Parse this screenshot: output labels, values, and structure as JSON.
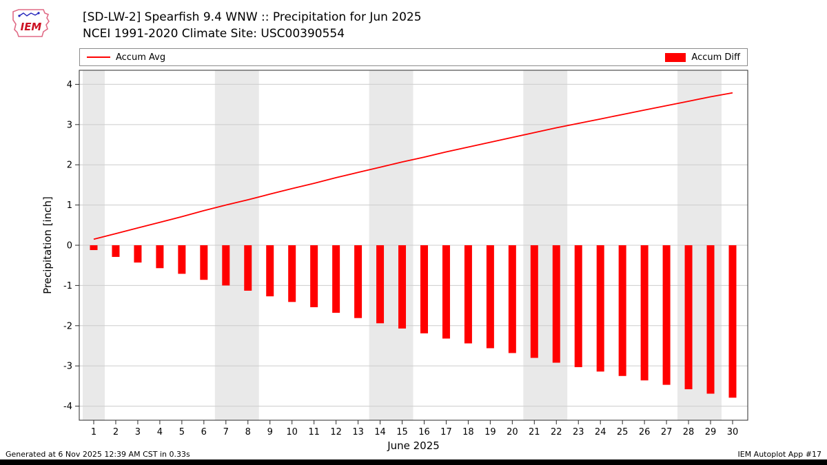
{
  "header": {
    "title_line1": "[SD-LW-2] Spearfish 9.4 WNW :: Precipitation for Jun 2025",
    "title_line2": "NCEI 1991-2020 Climate Site: USC00390554",
    "logo_text": "IEM"
  },
  "legend": {
    "line_label": "Accum Avg",
    "bar_label": "Accum Diff"
  },
  "footer": {
    "left": "Generated at 6 Nov 2025 12:39 AM CST in 0.33s",
    "right": "IEM Autoplot App #17"
  },
  "chart_data": {
    "type": "bar",
    "title": "[SD-LW-2] Spearfish 9.4 WNW :: Precipitation for Jun 2025",
    "subtitle": "NCEI 1991-2020 Climate Site: USC00390554",
    "xlabel": "June 2025",
    "ylabel": "Precipitation [inch]",
    "ylim": [
      -4.35,
      4.35
    ],
    "yticks": [
      -4,
      -3,
      -2,
      -1,
      0,
      1,
      2,
      3,
      4
    ],
    "grid": true,
    "grid_color": "#cccccc",
    "band_color": "#e9e9e9",
    "legend_position": "top",
    "x": [
      1,
      2,
      3,
      4,
      5,
      6,
      7,
      8,
      9,
      10,
      11,
      12,
      13,
      14,
      15,
      16,
      17,
      18,
      19,
      20,
      21,
      22,
      23,
      24,
      25,
      26,
      27,
      28,
      29,
      30
    ],
    "weekend_bands": [
      [
        0.5,
        1.5
      ],
      [
        6.5,
        8.5
      ],
      [
        13.5,
        15.5
      ],
      [
        20.5,
        22.5
      ],
      [
        27.5,
        29.5
      ]
    ],
    "series": [
      {
        "name": "Accum Avg",
        "type": "line",
        "color": "#ff0000",
        "values": [
          0.15,
          0.29,
          0.43,
          0.57,
          0.71,
          0.86,
          1.0,
          1.13,
          1.27,
          1.41,
          1.54,
          1.68,
          1.81,
          1.94,
          2.07,
          2.19,
          2.32,
          2.44,
          2.56,
          2.68,
          2.8,
          2.92,
          3.03,
          3.14,
          3.25,
          3.36,
          3.47,
          3.58,
          3.69,
          3.79
        ]
      },
      {
        "name": "Accum Diff",
        "type": "bar",
        "color": "#ff0000",
        "values": [
          -0.12,
          -0.29,
          -0.43,
          -0.57,
          -0.71,
          -0.86,
          -1.0,
          -1.13,
          -1.27,
          -1.41,
          -1.54,
          -1.68,
          -1.81,
          -1.94,
          -2.07,
          -2.19,
          -2.32,
          -2.44,
          -2.56,
          -2.68,
          -2.8,
          -2.92,
          -3.03,
          -3.14,
          -3.25,
          -3.36,
          -3.47,
          -3.58,
          -3.69,
          -3.79
        ]
      }
    ]
  }
}
